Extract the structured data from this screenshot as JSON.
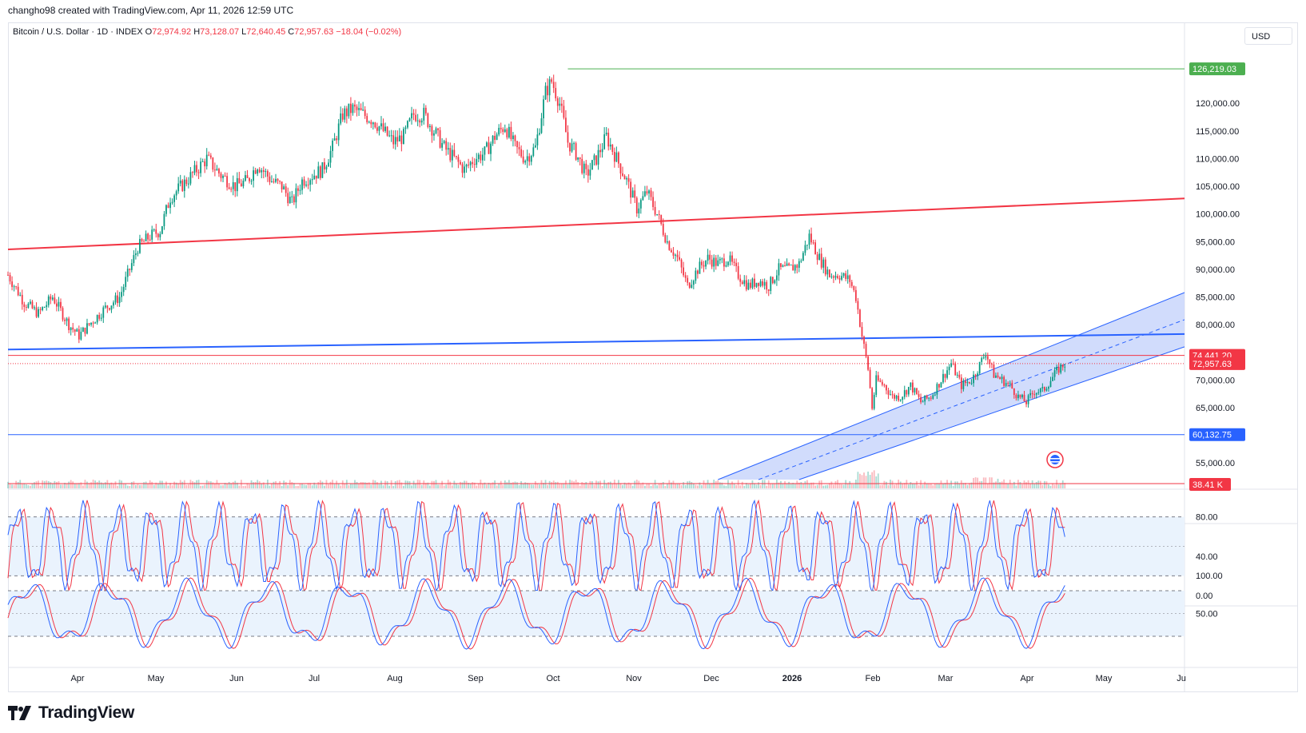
{
  "header": {
    "attribution": "changho98 created with TradingView.com, Apr 11, 2026 12:59 UTC"
  },
  "legend": {
    "symbol": "Bitcoin / U.S. Dollar · 1D · INDEX",
    "open_label": "O",
    "open": "72,974.92",
    "high_label": "H",
    "high": "73,128.07",
    "low_label": "L",
    "low": "72,640.45",
    "close_label": "C",
    "close": "72,957.63",
    "change": "−18.04 (−0.02%)"
  },
  "currency": "USD",
  "brand": "TradingView",
  "colors": {
    "up": "#089981",
    "down": "#f23645",
    "red_line": "#f23645",
    "blue_line": "#2962ff",
    "channel_fill": "#c9d6fb",
    "green_line": "#4caf50",
    "stoch_fill": "#eaf3fd"
  },
  "chart_data": {
    "type": "candlestick",
    "price_axis": {
      "min": 55000,
      "max": 126219.03,
      "ticks": [
        "120,000.00",
        "115,000.00",
        "110,000.00",
        "105,000.00",
        "100,000.00",
        "95,000.00",
        "90,000.00",
        "85,000.00",
        "80,000.00",
        "75,000.00",
        "70,000.00",
        "65,000.00",
        "60,000.00",
        "55,000.00"
      ],
      "tick_values": [
        120000,
        115000,
        110000,
        105000,
        100000,
        95000,
        90000,
        85000,
        80000,
        75000,
        70000,
        65000,
        60000,
        55000
      ]
    },
    "price_labels": [
      {
        "value": 126219.03,
        "text": "126,219.03",
        "color": "#4caf50"
      },
      {
        "value": 74441.2,
        "text": "74,441.20",
        "color": "#f23645"
      },
      {
        "value": 72957.63,
        "text": "72,957.63",
        "color": "#f23645"
      },
      {
        "value": 60132.75,
        "text": "60,132.75",
        "color": "#2962ff"
      }
    ],
    "volume_label": {
      "text": "38.41 K",
      "color": "#f23645"
    },
    "time_axis": [
      "Apr",
      "May",
      "Jun",
      "Jul",
      "Aug",
      "Sep",
      "Oct",
      "Nov",
      "Dec",
      "2026",
      "Feb",
      "Mar",
      "Apr",
      "May",
      "Ju"
    ],
    "close_series": [
      [
        0,
        89000
      ],
      [
        8,
        84000
      ],
      [
        15,
        82000
      ],
      [
        22,
        85000
      ],
      [
        30,
        80000
      ],
      [
        35,
        78000
      ],
      [
        40,
        80000
      ],
      [
        48,
        83000
      ],
      [
        55,
        85000
      ],
      [
        60,
        90000
      ],
      [
        64,
        94000
      ],
      [
        70,
        96000
      ],
      [
        75,
        97000
      ],
      [
        80,
        103000
      ],
      [
        88,
        106000
      ],
      [
        93,
        108000
      ],
      [
        98,
        110000
      ],
      [
        105,
        107000
      ],
      [
        112,
        105000
      ],
      [
        118,
        106000
      ],
      [
        123,
        109000
      ],
      [
        130,
        106000
      ],
      [
        135,
        105000
      ],
      [
        140,
        102000
      ],
      [
        145,
        106000
      ],
      [
        150,
        107000
      ],
      [
        155,
        108000
      ],
      [
        160,
        112000
      ],
      [
        165,
        118000
      ],
      [
        170,
        119000
      ],
      [
        175,
        118000
      ],
      [
        180,
        117000
      ],
      [
        185,
        115000
      ],
      [
        190,
        113000
      ],
      [
        195,
        114000
      ],
      [
        200,
        118000
      ],
      [
        205,
        118000
      ],
      [
        210,
        115000
      ],
      [
        215,
        112000
      ],
      [
        220,
        110000
      ],
      [
        225,
        108000
      ],
      [
        230,
        110000
      ],
      [
        235,
        111000
      ],
      [
        240,
        114000
      ],
      [
        245,
        116000
      ],
      [
        250,
        112000
      ],
      [
        255,
        110000
      ],
      [
        260,
        112000
      ],
      [
        265,
        122000
      ],
      [
        268,
        124000
      ],
      [
        272,
        120000
      ],
      [
        276,
        113000
      ],
      [
        280,
        111000
      ],
      [
        285,
        107000
      ],
      [
        290,
        110000
      ],
      [
        295,
        114000
      ],
      [
        300,
        110000
      ],
      [
        305,
        106000
      ],
      [
        310,
        101000
      ],
      [
        315,
        104000
      ],
      [
        320,
        100000
      ],
      [
        325,
        95000
      ],
      [
        330,
        92000
      ],
      [
        335,
        87000
      ],
      [
        340,
        90000
      ],
      [
        345,
        92000
      ],
      [
        350,
        91000
      ],
      [
        355,
        92000
      ],
      [
        360,
        89000
      ],
      [
        365,
        87000
      ],
      [
        370,
        88000
      ],
      [
        375,
        87000
      ],
      [
        380,
        90000
      ],
      [
        385,
        90000
      ],
      [
        390,
        91000
      ],
      [
        395,
        96000
      ],
      [
        400,
        92000
      ],
      [
        405,
        89000
      ],
      [
        410,
        89000
      ],
      [
        415,
        88000
      ],
      [
        418,
        85000
      ],
      [
        421,
        78000
      ],
      [
        424,
        72000
      ],
      [
        426,
        65000
      ],
      [
        428,
        70000
      ],
      [
        432,
        69000
      ],
      [
        436,
        67000
      ],
      [
        440,
        67000
      ],
      [
        445,
        69000
      ],
      [
        450,
        66000
      ],
      [
        455,
        67000
      ],
      [
        460,
        70000
      ],
      [
        465,
        73000
      ],
      [
        470,
        69000
      ],
      [
        475,
        70000
      ],
      [
        478,
        72000
      ],
      [
        482,
        75000
      ],
      [
        486,
        71000
      ],
      [
        490,
        70000
      ],
      [
        494,
        69000
      ],
      [
        498,
        67000
      ],
      [
        502,
        66000
      ],
      [
        506,
        68000
      ],
      [
        510,
        68000
      ],
      [
        514,
        70000
      ],
      [
        518,
        72000
      ],
      [
        521,
        72957
      ]
    ],
    "series_range_days": 521,
    "lines": [
      {
        "name": "",
        "from": [
          0,
          93600
        ],
        "to": [
          580,
          102800
        ],
        "color": "#f23645"
      },
      {
        "name": "",
        "from": [
          0,
          75500
        ],
        "to": [
          580,
          78300
        ],
        "color": "#2962ff"
      },
      {
        "name": "",
        "from": [
          0,
          74441.2
        ],
        "to": [
          580,
          74441.2
        ],
        "color": "#f23645"
      },
      {
        "name": "",
        "from": [
          0,
          60132.75
        ],
        "to": [
          580,
          60132.75
        ],
        "color": "#2962ff"
      },
      {
        "name": "",
        "from": [
          276,
          126219.03
        ],
        "to": [
          580,
          126219.03
        ],
        "color": "#4caf50"
      }
    ],
    "indicators": [
      {
        "name": "",
        "type": "stochastic",
        "levels": [
          "80.00",
          "40.00",
          "0.00"
        ],
        "level_values": [
          80,
          40,
          0
        ],
        "band": [
          20,
          80
        ]
      },
      {
        "name": "",
        "type": "stochastic",
        "levels": [
          "100.00",
          "50.00"
        ],
        "level_values": [
          100,
          50
        ],
        "band": [
          20,
          80
        ]
      }
    ]
  }
}
